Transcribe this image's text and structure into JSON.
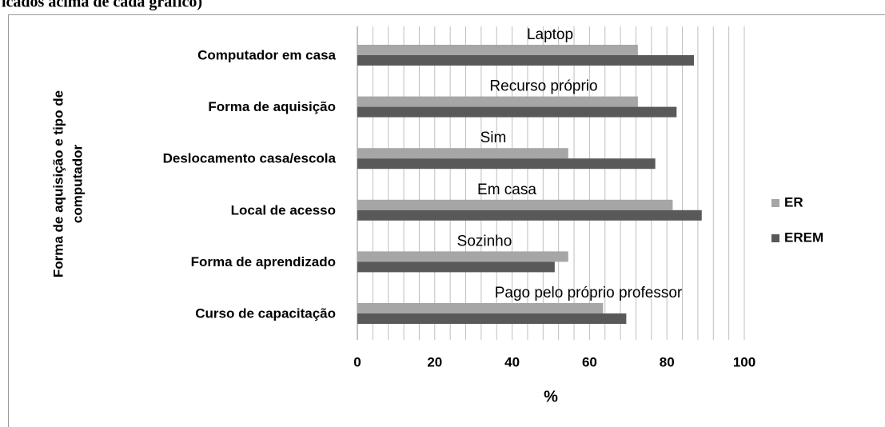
{
  "header_text": "icados acima de cada gráfico)",
  "chart_data": {
    "type": "barh",
    "categories": [
      "Computador em casa",
      "Forma de aquisição",
      "Deslocamento casa/escola",
      "Local de acesso",
      "Forma de aprendizado",
      "Curso de capacitação"
    ],
    "annotations": [
      "Laptop",
      "Recurso próprio",
      "Sim",
      "Em casa",
      "Sozinho",
      "Pago pelo próprio professor"
    ],
    "series": [
      {
        "name": "ER",
        "color": "#a6a6a6",
        "values": [
          72.5,
          72.5,
          54.5,
          81.5,
          54.5,
          63.5
        ]
      },
      {
        "name": "EREM",
        "color": "#595959",
        "values": [
          87,
          82.5,
          77,
          89,
          51,
          69.5
        ]
      }
    ],
    "xlabel": "%",
    "ylabel": [
      "Forma de aquisição e tipo de",
      "computador"
    ],
    "xlim": [
      0,
      100
    ],
    "xticks": [
      0,
      20,
      40,
      60,
      80,
      100
    ],
    "xgrid": [
      4,
      8,
      12,
      16,
      20,
      24,
      28,
      32,
      36,
      40,
      44,
      48,
      52,
      56,
      60,
      64,
      68,
      72,
      76,
      80,
      84,
      88,
      92,
      96,
      100
    ],
    "grid": true,
    "legend": "right"
  }
}
